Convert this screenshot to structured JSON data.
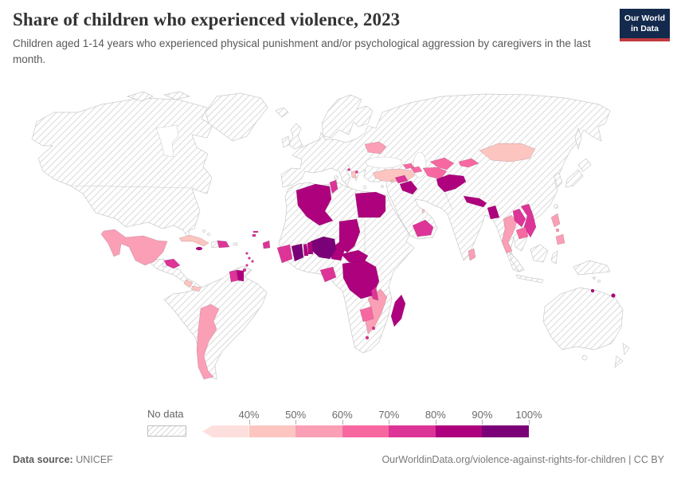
{
  "header": {
    "title": "Share of children who experienced violence, 2023",
    "subtitle": "Children aged 1-14 years who experienced physical punishment and/or psychological aggression by caregivers in the last month.",
    "logo": {
      "line1": "Our World",
      "line2": "in Data",
      "bg": "#132a4d",
      "accent": "#c23a40"
    }
  },
  "legend": {
    "no_data_label": "No data",
    "ticks": [
      "40%",
      "50%",
      "60%",
      "70%",
      "80%",
      "90%",
      "100%"
    ]
  },
  "footer": {
    "source_label": "Data source:",
    "source_value": "UNICEF",
    "attribution": "OurWorldinData.org/violence-against-rights-for-children | CC BY"
  },
  "chart_data": {
    "type": "heatmap",
    "subtype": "choropleth_world_map",
    "title": "Share of children who experienced violence, 2023",
    "unit": "% of children aged 1-14",
    "year": 2023,
    "no_data_style": "hatched",
    "legend_position": "bottom",
    "bins": [
      {
        "label": "<40%",
        "color": "#fde0dd"
      },
      {
        "label": "40-50%",
        "color": "#fcc5c0"
      },
      {
        "label": "50-60%",
        "color": "#fa9fb5"
      },
      {
        "label": "60-70%",
        "color": "#f768a1"
      },
      {
        "label": "70-80%",
        "color": "#dd3497"
      },
      {
        "label": "80-90%",
        "color": "#ae017e"
      },
      {
        "label": "90-100%",
        "color": "#7a0177"
      }
    ],
    "countries": [
      {
        "id": "mexico",
        "name": "Mexico",
        "bin": "50-60%"
      },
      {
        "id": "cuba",
        "name": "Cuba",
        "bin": "40-50%"
      },
      {
        "id": "honduras",
        "name": "Honduras",
        "bin": "70-80%"
      },
      {
        "id": "costa-rica",
        "name": "Costa Rica",
        "bin": "40-50%"
      },
      {
        "id": "panama",
        "name": "Panama",
        "bin": "40-50%"
      },
      {
        "id": "jamaica",
        "name": "Jamaica",
        "bin": "80-90%"
      },
      {
        "id": "dominican-republic",
        "name": "Dominican Republic",
        "bin": "70-80%"
      },
      {
        "id": "dominica",
        "name": "Dominica",
        "bin": "70-80%"
      },
      {
        "id": "saint-lucia",
        "name": "Saint Lucia",
        "bin": "70-80%"
      },
      {
        "id": "barbados",
        "name": "Barbados",
        "bin": "70-80%"
      },
      {
        "id": "grenada",
        "name": "Grenada",
        "bin": "70-80%"
      },
      {
        "id": "trinidad-and-tobago",
        "name": "Trinidad and Tobago",
        "bin": "70-80%"
      },
      {
        "id": "guyana",
        "name": "Guyana",
        "bin": "70-80%"
      },
      {
        "id": "suriname",
        "name": "Suriname",
        "bin": "80-90%"
      },
      {
        "id": "argentina",
        "name": "Argentina",
        "bin": "50-60%"
      },
      {
        "id": "belarus",
        "name": "Belarus",
        "bin": "50-60%"
      },
      {
        "id": "albania",
        "name": "Albania",
        "bin": "40-50%"
      },
      {
        "id": "montenegro",
        "name": "Montenegro",
        "bin": "70-80%"
      },
      {
        "id": "north-macedonia",
        "name": "North Macedonia",
        "bin": "70-80%"
      },
      {
        "id": "turkey",
        "name": "Turkey",
        "bin": "40-50%"
      },
      {
        "id": "georgia",
        "name": "Georgia",
        "bin": "60-70%"
      },
      {
        "id": "azerbaijan",
        "name": "Azerbaijan",
        "bin": "60-70%"
      },
      {
        "id": "uzbekistan",
        "name": "Uzbekistan",
        "bin": "60-70%"
      },
      {
        "id": "turkmenistan",
        "name": "Turkmenistan",
        "bin": "60-70%"
      },
      {
        "id": "kyrgyzstan",
        "name": "Kyrgyzstan",
        "bin": "60-70%"
      },
      {
        "id": "afghanistan",
        "name": "Afghanistan",
        "bin": "80-90%"
      },
      {
        "id": "syria",
        "name": "Syria",
        "bin": "70-80%"
      },
      {
        "id": "iraq",
        "name": "Iraq",
        "bin": "80-90%"
      },
      {
        "id": "lebanon",
        "name": "Lebanon",
        "bin": "40-50%"
      },
      {
        "id": "qatar",
        "name": "Qatar",
        "bin": "40-50%"
      },
      {
        "id": "yemen",
        "name": "Yemen",
        "bin": "70-80%"
      },
      {
        "id": "algeria",
        "name": "Algeria",
        "bin": "80-90%"
      },
      {
        "id": "tunisia",
        "name": "Tunisia",
        "bin": "70-80%"
      },
      {
        "id": "egypt",
        "name": "Egypt",
        "bin": "80-90%"
      },
      {
        "id": "chad",
        "name": "Chad",
        "bin": "80-90%"
      },
      {
        "id": "central-african-republic",
        "name": "Central African Republic",
        "bin": "80-90%"
      },
      {
        "id": "dr-congo",
        "name": "Democratic Republic of Congo",
        "bin": "80-90%"
      },
      {
        "id": "cameroon",
        "name": "Cameroon",
        "bin": "80-90%"
      },
      {
        "id": "nigeria",
        "name": "Nigeria",
        "bin": "90-100%"
      },
      {
        "id": "benin",
        "name": "Benin",
        "bin": "80-90%"
      },
      {
        "id": "togo",
        "name": "Togo",
        "bin": "80-90%"
      },
      {
        "id": "ghana",
        "name": "Ghana",
        "bin": "90-100%"
      },
      {
        "id": "cote-divoire",
        "name": "Côte d'Ivoire",
        "bin": "70-80%"
      },
      {
        "id": "sierra-leone",
        "name": "Sierra Leone",
        "bin": "70-80%"
      },
      {
        "id": "gambia",
        "name": "Gambia",
        "bin": "70-80%"
      },
      {
        "id": "guinea-bissau",
        "name": "Guinea-Bissau",
        "bin": "70-80%"
      },
      {
        "id": "gabon",
        "name": "Gabon",
        "bin": "70-80%"
      },
      {
        "id": "mozambique",
        "name": "Mozambique",
        "bin": "50-60%"
      },
      {
        "id": "malawi",
        "name": "Malawi",
        "bin": "70-80%"
      },
      {
        "id": "zimbabwe",
        "name": "Zimbabwe",
        "bin": "60-70%"
      },
      {
        "id": "eswatini",
        "name": "Eswatini",
        "bin": "70-80%"
      },
      {
        "id": "lesotho",
        "name": "Lesotho",
        "bin": "70-80%"
      },
      {
        "id": "madagascar",
        "name": "Madagascar",
        "bin": "80-90%"
      },
      {
        "id": "mongolia",
        "name": "Mongolia",
        "bin": "40-50%"
      },
      {
        "id": "nepal",
        "name": "Nepal",
        "bin": "80-90%"
      },
      {
        "id": "bangladesh",
        "name": "Bangladesh",
        "bin": "80-90%"
      },
      {
        "id": "thailand",
        "name": "Thailand",
        "bin": "50-60%"
      },
      {
        "id": "laos",
        "name": "Laos",
        "bin": "70-80%"
      },
      {
        "id": "vietnam",
        "name": "Vietnam",
        "bin": "70-80%"
      },
      {
        "id": "cambodia",
        "name": "Cambodia",
        "bin": "60-70%"
      },
      {
        "id": "philippines",
        "name": "Philippines",
        "bin": "50-60%"
      },
      {
        "id": "sri-lanka",
        "name": "Sri Lanka",
        "bin": "50-60%"
      },
      {
        "id": "vanuatu",
        "name": "Vanuatu",
        "bin": "80-90%"
      },
      {
        "id": "fiji",
        "name": "Fiji",
        "bin": "80-90%"
      }
    ]
  }
}
